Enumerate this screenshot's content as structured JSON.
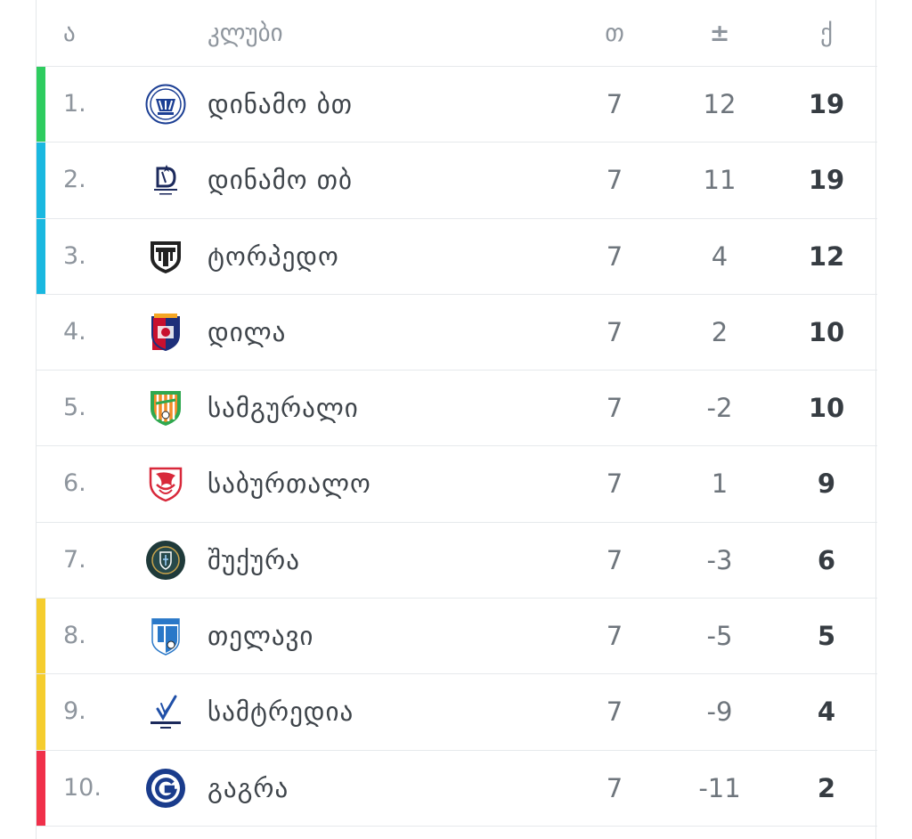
{
  "header": {
    "position": "ა",
    "club": "კლუბი",
    "played": "თ",
    "diff": "±",
    "points": "ქ"
  },
  "colors": {
    "promotion": "#2ecc5f",
    "europe": "#1ab8e0",
    "playoff": "#f5cd2e",
    "relegation": "#f0304a"
  },
  "rows": [
    {
      "pos": "1.",
      "name": "დინამო ბთ",
      "played": "7",
      "diff": "12",
      "points": "19",
      "zone": "promotion",
      "logo": "dinamo-batumi-logo"
    },
    {
      "pos": "2.",
      "name": "დინამო თბ",
      "played": "7",
      "diff": "11",
      "points": "19",
      "zone": "europe",
      "logo": "dinamo-tbilisi-logo"
    },
    {
      "pos": "3.",
      "name": "ტორპედო",
      "played": "7",
      "diff": "4",
      "points": "12",
      "zone": "europe",
      "logo": "torpedo-logo"
    },
    {
      "pos": "4.",
      "name": "დილა",
      "played": "7",
      "diff": "2",
      "points": "10",
      "zone": "",
      "logo": "dila-logo"
    },
    {
      "pos": "5.",
      "name": "სამგურალი",
      "played": "7",
      "diff": "-2",
      "points": "10",
      "zone": "",
      "logo": "samgurali-logo"
    },
    {
      "pos": "6.",
      "name": "საბურთალო",
      "played": "7",
      "diff": "1",
      "points": "9",
      "zone": "",
      "logo": "saburtalo-logo"
    },
    {
      "pos": "7.",
      "name": "შუქურა",
      "played": "7",
      "diff": "-3",
      "points": "6",
      "zone": "",
      "logo": "shukura-logo"
    },
    {
      "pos": "8.",
      "name": "თელავი",
      "played": "7",
      "diff": "-5",
      "points": "5",
      "zone": "playoff",
      "logo": "telavi-logo"
    },
    {
      "pos": "9.",
      "name": "სამტრედია",
      "played": "7",
      "diff": "-9",
      "points": "4",
      "zone": "playoff",
      "logo": "samtredia-logo"
    },
    {
      "pos": "10.",
      "name": "გაგრა",
      "played": "7",
      "diff": "-11",
      "points": "2",
      "zone": "relegation",
      "logo": "gagra-logo"
    }
  ]
}
